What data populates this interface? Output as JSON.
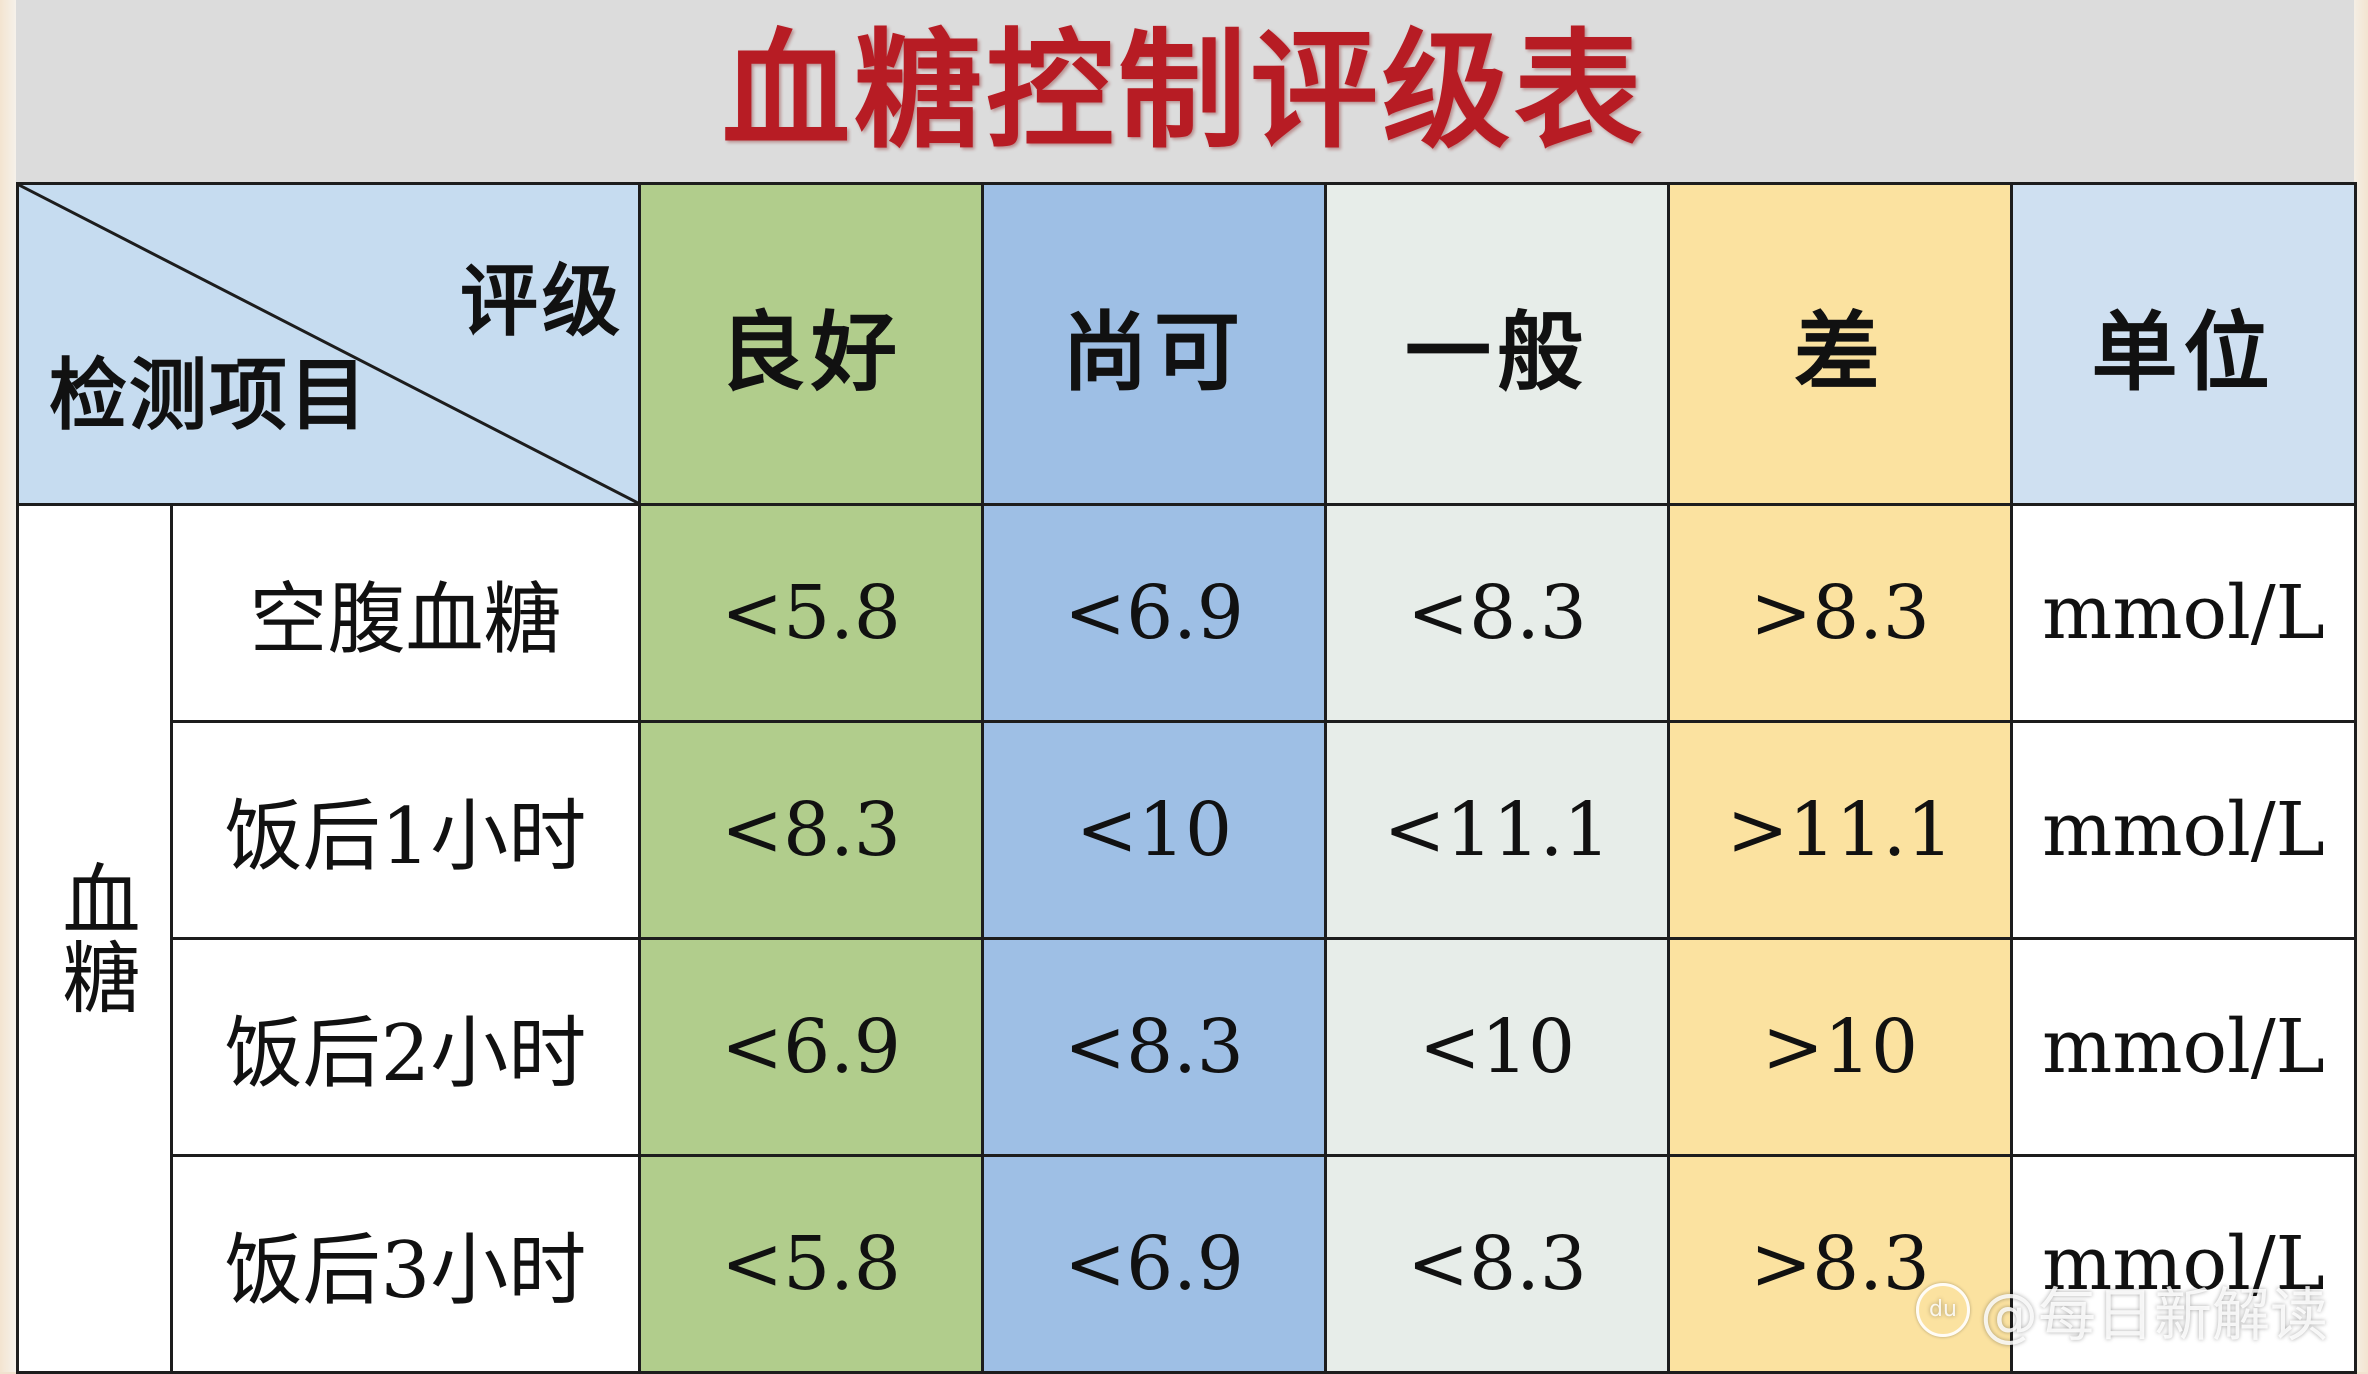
{
  "title": "血糖控制评级表",
  "header": {
    "corner_top": "评级",
    "corner_bottom": "检测项目",
    "grades": [
      "良好",
      "尚可",
      "一般",
      "差"
    ],
    "unit_header": "单位"
  },
  "group_label": "血糖",
  "rows": [
    {
      "item": "空腹血糖",
      "good": "<5.8",
      "ok": "<6.9",
      "avg": "<8.3",
      "poor": ">8.3",
      "unit": "mmol/L"
    },
    {
      "item": "饭后1小时",
      "good": "<8.3",
      "ok": "<10",
      "avg": "<11.1",
      "poor": ">11.1",
      "unit": "mmol/L"
    },
    {
      "item": "饭后2小时",
      "good": "<6.9",
      "ok": "<8.3",
      "avg": "<10",
      "poor": ">10",
      "unit": "mmol/L"
    },
    {
      "item": "饭后3小时",
      "good": "<5.8",
      "ok": "<6.9",
      "avg": "<8.3",
      "poor": ">8.3",
      "unit": "mmol/L"
    }
  ],
  "watermark": "@每日新解读",
  "colors": {
    "title": "#b71c24",
    "good": "#b1cd8c",
    "ok": "#9ebfe5",
    "avg": "#e7ede9",
    "poor": "#fbe2a0",
    "unit": "#cfe0f1",
    "corner": "#c6dcf0"
  }
}
